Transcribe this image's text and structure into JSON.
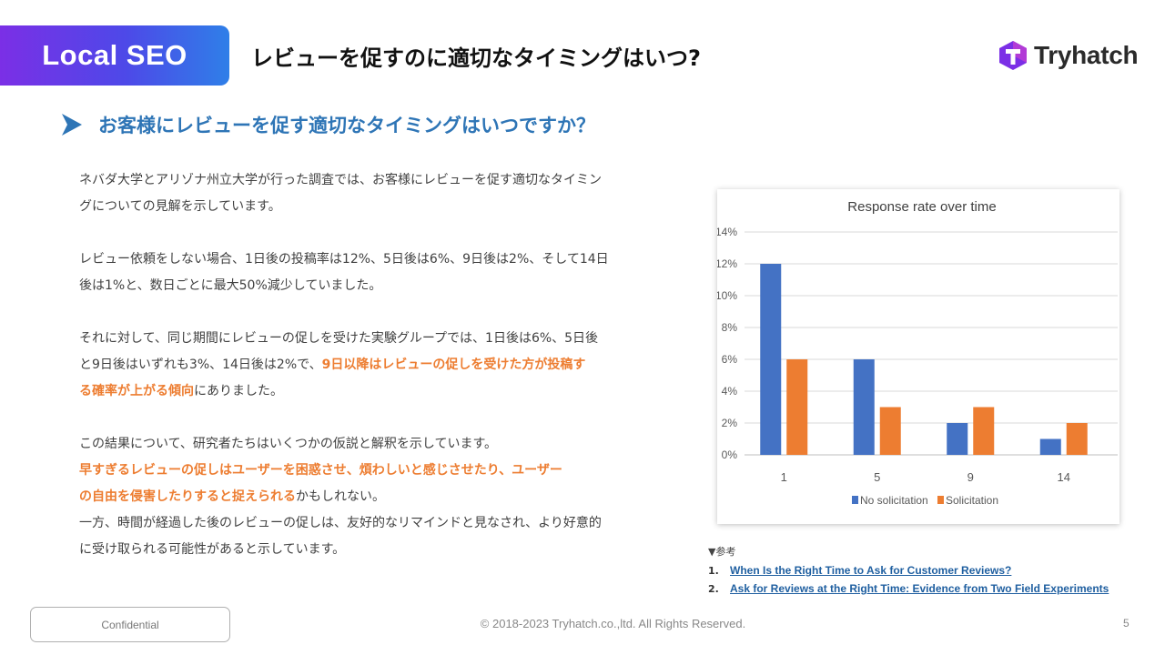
{
  "header": {
    "badge_label": "Local SEO",
    "title": "レビューを促すのに適切なタイミングはいつ?",
    "logo_text": "Tryhatch"
  },
  "section": {
    "heading": "お客様にレビューを促す適切なタイミングはいつですか？"
  },
  "body": {
    "p1_l1": "ネバダ大学とアリゾナ州立大学が行った調査では、お客様にレビューを促す適切なタイミン",
    "p1_l2": "グについての見解を示しています。",
    "p2_l1": "レビュー依頼をしない場合、1日後の投稿率は12%、5日後は6%、9日後は2%、そして14日",
    "p2_l2": "後は1%と、数日ごとに最大50%減少していました。",
    "p3_l1": "それに対して、同じ期間にレビューの促しを受けた実験グループでは、1日後は6%、5日後",
    "p3_l2a": "と9日後はいずれも3%、14日後は2%で、",
    "p3_l2b": "9日以降はレビューの促しを受けた方が投稿す",
    "p3_l3a": "る確率が上がる傾向",
    "p3_l3b": "にありました。",
    "p4_l1": "この結果について、研究者たちはいくつかの仮説と解釈を示しています。",
    "p4_l2": "早すぎるレビューの促しはユーザーを困惑させ、煩わしいと感じさせたり、ユーザー",
    "p4_l3a": "の自由を侵害したりすると捉えられる",
    "p4_l3b": "かもしれない。",
    "p4_l4": "一方、時間が経過した後のレビューの促しは、友好的なリマインドと見なされ、より好意的",
    "p4_l5": "に受け取られる可能性があると示しています。"
  },
  "chart_data": {
    "type": "bar",
    "title": "Response rate over time",
    "categories": [
      "1",
      "5",
      "9",
      "14"
    ],
    "series": [
      {
        "name": "No solicitation",
        "values": [
          12,
          6,
          2,
          1
        ],
        "color": "#4472c4"
      },
      {
        "name": "Solicitation",
        "values": [
          6,
          3,
          3,
          2
        ],
        "color": "#ed7d31"
      }
    ],
    "ylim": [
      0,
      14
    ],
    "yticks": [
      "0%",
      "2%",
      "4%",
      "6%",
      "8%",
      "10%",
      "12%",
      "14%"
    ],
    "xlabel": "",
    "ylabel": "",
    "grid": true,
    "legend": "bottom"
  },
  "references": {
    "heading": "▼参考",
    "items": [
      {
        "num": "1.",
        "text": "When Is the Right Time to Ask for Customer Reviews?"
      },
      {
        "num": "2.",
        "text": "Ask for Reviews at the Right Time: Evidence from Two Field Experiments"
      }
    ]
  },
  "footer": {
    "confidential": "Confidential",
    "copyright": "© 2018-2023 Tryhatch.co.,ltd. All Rights Reserved.",
    "page": "5"
  },
  "colors": {
    "accent_blue": "#2e75b6",
    "highlight_orange": "#ed7d31",
    "badge_purple": "#7b2fe6",
    "badge_blue": "#2f7fe8"
  }
}
